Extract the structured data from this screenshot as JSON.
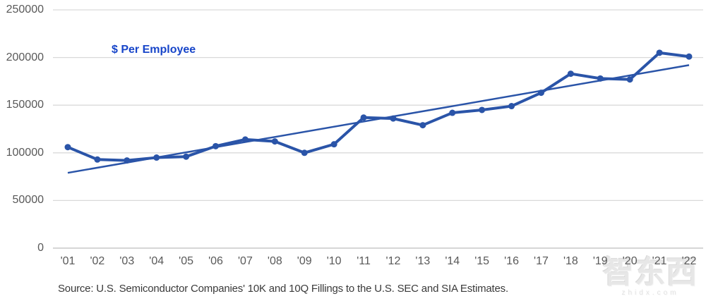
{
  "chart_data": {
    "type": "line",
    "title": "$ Per Employee",
    "x": [
      "'01",
      "'02",
      "'03",
      "'04",
      "'05",
      "'06",
      "'07",
      "'08",
      "'09",
      "'10",
      "'11",
      "'12",
      "'13",
      "'14",
      "'15",
      "'16",
      "'17",
      "'18",
      "'19",
      "'20",
      "'21",
      "'22"
    ],
    "series": [
      {
        "name": "$ Per Employee",
        "values": [
          106000,
          93000,
          92000,
          95000,
          96000,
          107000,
          114000,
          112000,
          100000,
          109000,
          137000,
          136000,
          129000,
          142000,
          145000,
          149000,
          163000,
          183000,
          178000,
          177000,
          205000,
          201000
        ]
      }
    ],
    "trendline": {
      "start": 79000,
      "end": 192000
    },
    "ylim": [
      0,
      250000
    ],
    "yticks": [
      0,
      50000,
      100000,
      150000,
      200000,
      250000
    ],
    "grid": true,
    "legend_position": "inside-top-left",
    "xlabel": "",
    "ylabel": "",
    "colors": {
      "line": "#2a54a8",
      "marker": "#2a54a8",
      "trendline": "#2a54a8",
      "title_text": "#1745c9",
      "axis_text": "#595959",
      "gridline": "#d9d9d9",
      "axis_line": "#bdbdbd"
    }
  },
  "source_note": "Source: U.S. Semiconductor Companies' 10K and 10Q Fillings to the U.S. SEC and SIA Estimates.",
  "watermark": {
    "text": "智东西",
    "subtext": "zhidx.com"
  }
}
